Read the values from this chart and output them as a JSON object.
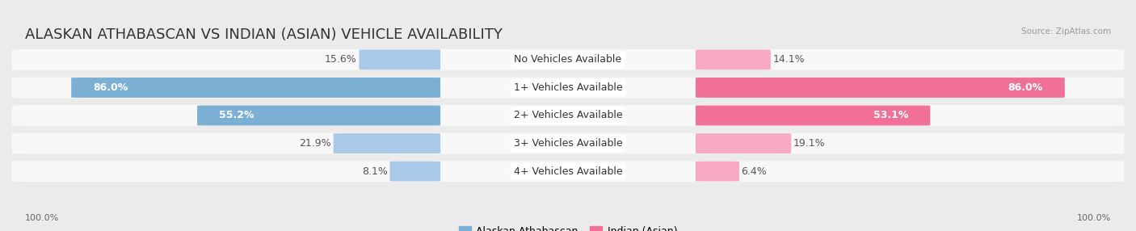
{
  "title": "ALASKAN ATHABASCAN VS INDIAN (ASIAN) VEHICLE AVAILABILITY",
  "source": "Source: ZipAtlas.com",
  "categories": [
    "No Vehicles Available",
    "1+ Vehicles Available",
    "2+ Vehicles Available",
    "3+ Vehicles Available",
    "4+ Vehicles Available"
  ],
  "left_values": [
    15.6,
    86.0,
    55.2,
    21.9,
    8.1
  ],
  "right_values": [
    14.1,
    86.0,
    53.1,
    19.1,
    6.4
  ],
  "left_label": "Alaskan Athabascan",
  "right_label": "Indian (Asian)",
  "left_color": "#7bafd4",
  "right_color": "#f07098",
  "left_color_light": "#aac8e8",
  "right_color_light": "#f8aac4",
  "bg_color": "#ebebeb",
  "bar_bg_color": "#f8f8f8",
  "bar_bg_color2": "#e8e8e8",
  "max_value": 100.0,
  "title_fontsize": 13,
  "label_fontsize": 9,
  "value_fontsize": 9,
  "axis_label_left": "100.0%",
  "axis_label_right": "100.0%"
}
